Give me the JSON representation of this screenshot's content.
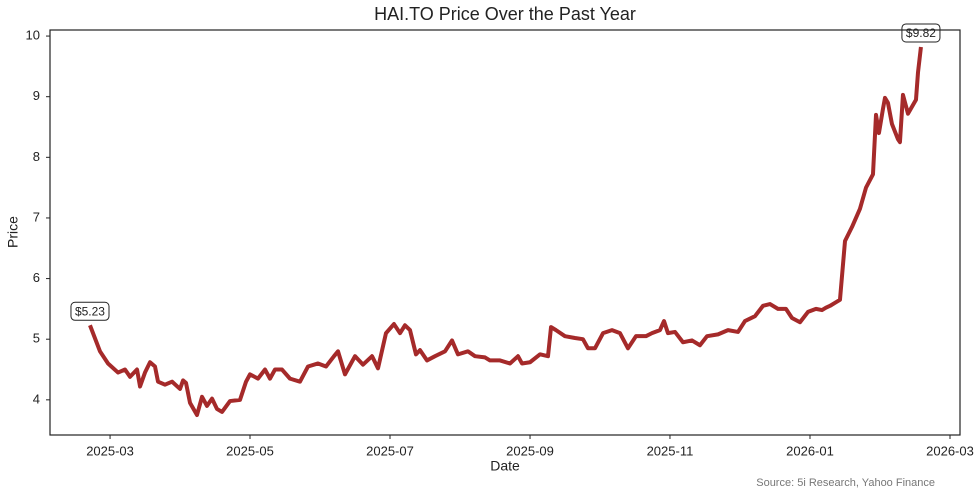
{
  "chart_data": {
    "type": "line",
    "title": "HAI.TO Price Over the Past Year",
    "xlabel": "Date",
    "ylabel": "Price",
    "source": "Source: 5i Research, Yahoo Finance",
    "xlim": [
      2025.0952,
      2026.1786
    ],
    "ylim": [
      3.42,
      10.1
    ],
    "xticks": [
      {
        "value": 2025.1667,
        "label": "2025-03"
      },
      {
        "value": 2025.3333,
        "label": "2025-05"
      },
      {
        "value": 2025.5,
        "label": "2025-07"
      },
      {
        "value": 2025.6667,
        "label": "2025-09"
      },
      {
        "value": 2025.8333,
        "label": "2025-11"
      },
      {
        "value": 2026.0,
        "label": "2026-01"
      },
      {
        "value": 2026.1667,
        "label": "2026-03"
      }
    ],
    "yticks": [
      4,
      5,
      6,
      7,
      8,
      9,
      10
    ],
    "grid": false,
    "x": [
      2025.1428,
      2025.1547,
      2025.1643,
      2025.1762,
      2025.1845,
      2025.1905,
      2025.1988,
      2025.2024,
      2025.2083,
      2025.2143,
      2025.2202,
      2025.2238,
      2025.2321,
      2025.2405,
      2025.25,
      2025.2536,
      2025.2571,
      2025.2619,
      2025.2702,
      2025.2762,
      2025.2821,
      2025.2881,
      2025.294,
      2025.3,
      2025.3095,
      2025.3214,
      2025.3286,
      2025.3333,
      2025.3428,
      2025.3512,
      2025.3571,
      2025.3631,
      2025.3714,
      2025.3809,
      2025.3928,
      2025.4024,
      2025.4143,
      2025.4238,
      2025.4333,
      2025.4381,
      2025.4464,
      2025.4583,
      2025.4678,
      2025.4786,
      2025.4857,
      2025.4952,
      2025.5047,
      2025.5119,
      2025.5178,
      2025.5238,
      2025.5309,
      2025.5357,
      2025.544,
      2025.5536,
      2025.5655,
      2025.5738,
      2025.5809,
      2025.5928,
      2025.6012,
      2025.6131,
      2025.619,
      2025.6309,
      2025.6428,
      2025.6524,
      2025.6571,
      2025.6667,
      2025.6786,
      2025.6881,
      2025.6917,
      2025.6976,
      2025.7083,
      2025.7202,
      2025.7297,
      2025.7357,
      2025.744,
      2025.7536,
      2025.7643,
      2025.7738,
      2025.7833,
      2025.7928,
      2025.8047,
      2025.8119,
      2025.8214,
      2025.8262,
      2025.8309,
      2025.8393,
      2025.8488,
      2025.8595,
      2025.869,
      2025.8774,
      2025.8905,
      2025.9024,
      2025.9143,
      2025.9226,
      2025.9345,
      2025.944,
      2025.9524,
      2025.9619,
      2025.9714,
      2025.9786,
      2025.9881,
      2025.9976,
      2026.0071,
      2026.0143,
      2026.019,
      2026.0238,
      2026.0298,
      2026.0357,
      2026.0417,
      2026.05,
      2026.0595,
      2026.0667,
      2026.075,
      2026.0786,
      2026.0821,
      2026.0869,
      2026.0893,
      2026.0928,
      2026.0976,
      2026.1047,
      2026.1071,
      2026.1107,
      2026.1167,
      2026.1262,
      2026.1286,
      2026.1321
    ],
    "series": [
      {
        "name": "HAI.TO",
        "color": "#a52a2a",
        "values": [
          5.23,
          4.8,
          4.6,
          4.45,
          4.5,
          4.38,
          4.5,
          4.22,
          4.45,
          4.62,
          4.55,
          4.3,
          4.25,
          4.3,
          4.18,
          4.32,
          4.28,
          3.95,
          3.75,
          4.05,
          3.9,
          4.02,
          3.85,
          3.8,
          3.98,
          4.0,
          4.3,
          4.42,
          4.35,
          4.5,
          4.35,
          4.5,
          4.5,
          4.35,
          4.3,
          4.55,
          4.6,
          4.55,
          4.72,
          4.8,
          4.42,
          4.72,
          4.58,
          4.72,
          4.52,
          5.1,
          5.25,
          5.1,
          5.23,
          5.15,
          4.75,
          4.82,
          4.65,
          4.72,
          4.8,
          4.98,
          4.75,
          4.8,
          4.72,
          4.7,
          4.65,
          4.65,
          4.6,
          4.72,
          4.6,
          4.62,
          4.75,
          4.72,
          5.2,
          5.15,
          5.05,
          5.02,
          5.0,
          4.85,
          4.85,
          5.1,
          5.15,
          5.1,
          4.85,
          5.05,
          5.05,
          5.1,
          5.15,
          5.3,
          5.1,
          5.12,
          4.95,
          4.98,
          4.9,
          5.05,
          5.08,
          5.15,
          5.12,
          5.3,
          5.38,
          5.55,
          5.58,
          5.5,
          5.5,
          5.35,
          5.28,
          5.45,
          5.5,
          5.48,
          5.52,
          5.55,
          5.6,
          5.65,
          6.62,
          6.85,
          7.15,
          7.5,
          7.72,
          8.7,
          8.4,
          8.8,
          8.98,
          8.9,
          8.55,
          8.3,
          8.25,
          9.03,
          8.72,
          8.95,
          9.4,
          9.82
        ]
      }
    ],
    "annotations": [
      {
        "label": "$5.23",
        "x": 2025.1428,
        "value": 5.23
      },
      {
        "label": "$9.82",
        "x": 2026.1321,
        "value": 9.82
      }
    ]
  }
}
